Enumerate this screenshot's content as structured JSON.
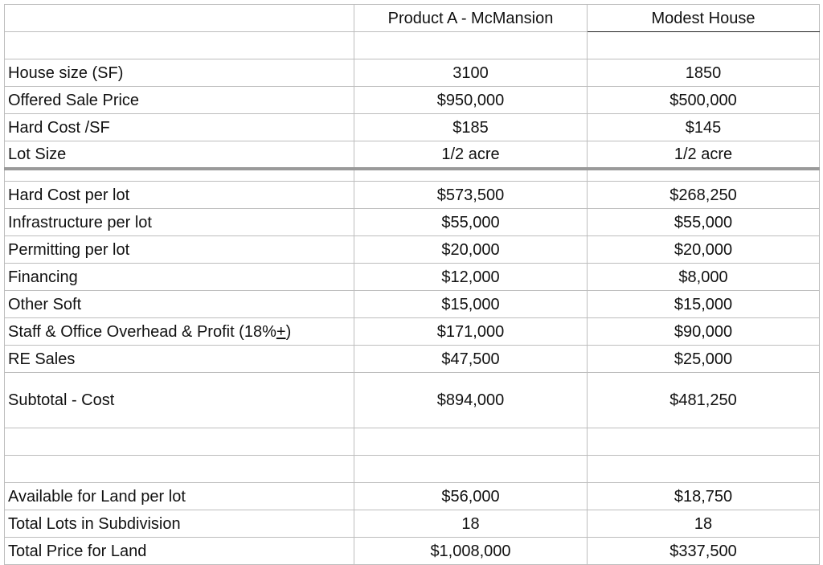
{
  "columns": [
    "",
    "Product A - McMansion",
    "Modest House"
  ],
  "rows": [
    {
      "label": "",
      "a": "",
      "b": "",
      "h": 34
    },
    {
      "label": "House size (SF)",
      "a": "3100",
      "b": "1850",
      "h": 34
    },
    {
      "label": "Offered Sale Price",
      "a": "$950,000",
      "b": "$500,000",
      "h": 34
    },
    {
      "label": "Hard Cost /SF",
      "a": "$185",
      "b": "$145",
      "h": 34
    },
    {
      "label": "Lot Size",
      "a": "1/2 acre",
      "b": "1/2 acre",
      "h": 34,
      "cls": "thick-bottom"
    },
    {
      "label": "",
      "a": "",
      "b": "",
      "h": 16
    },
    {
      "label": "Hard Cost per lot",
      "a": "$573,500",
      "b": "$268,250",
      "h": 34
    },
    {
      "label": "Infrastructure per lot",
      "a": "$55,000",
      "b": "$55,000",
      "h": 34
    },
    {
      "label": "Permitting per lot",
      "a": "$20,000",
      "b": "$20,000",
      "h": 34
    },
    {
      "label": "Financing",
      "a": "$12,000",
      "b": "$8,000",
      "h": 34
    },
    {
      "label": "Other Soft",
      "a": "$15,000",
      "b": "$15,000",
      "h": 34
    },
    {
      "label": "Staff & Office Overhead & Profit (18%",
      "label_suffix": "+",
      "label_tail": ")",
      "a": "$171,000",
      "b": "$90,000",
      "h": 34
    },
    {
      "label": "RE Sales",
      "a": "$47,500",
      "b": "$25,000",
      "h": 34
    },
    {
      "label": "Subtotal - Cost",
      "a": "$894,000",
      "b": "$481,250",
      "h": 69,
      "cls": "black-top"
    },
    {
      "label": "",
      "a": "",
      "b": "",
      "h": 34
    },
    {
      "label": "",
      "a": "",
      "b": "",
      "h": 34
    },
    {
      "label": "Available for Land per lot",
      "a": "$56,000",
      "b": "$18,750",
      "h": 34
    },
    {
      "label": "Total Lots in Subdivision",
      "a": "18",
      "b": "18",
      "h": 34
    },
    {
      "label": "Total Price for Land",
      "a": "$1,008,000",
      "b": "$337,500",
      "h": 34
    }
  ]
}
